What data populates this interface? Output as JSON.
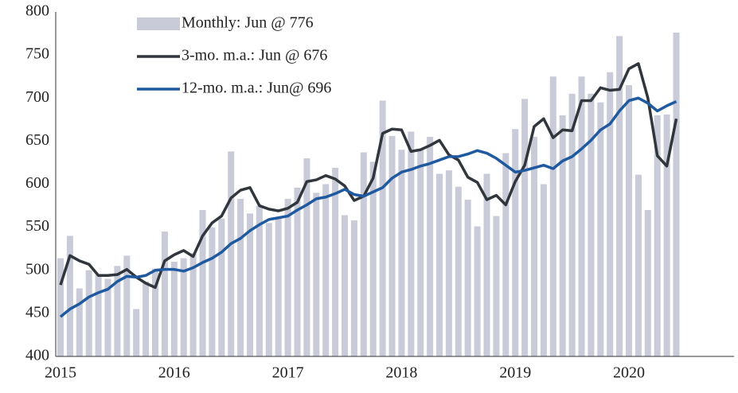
{
  "chart_data": {
    "type": "bar_line",
    "categories": [
      "2015",
      null,
      null,
      null,
      null,
      null,
      null,
      null,
      null,
      null,
      null,
      null,
      "2016",
      null,
      null,
      null,
      null,
      null,
      null,
      null,
      null,
      null,
      null,
      null,
      "2017",
      null,
      null,
      null,
      null,
      null,
      null,
      null,
      null,
      null,
      null,
      null,
      "2018",
      null,
      null,
      null,
      null,
      null,
      null,
      null,
      null,
      null,
      null,
      null,
      "2019",
      null,
      null,
      null,
      null,
      null,
      null,
      null,
      null,
      null,
      null,
      null,
      "2020",
      null,
      null,
      null,
      null,
      null
    ],
    "series": [
      {
        "name": "Monthly: Jun @ 776",
        "type": "bar",
        "color": "#c9cbd8",
        "values": [
          514,
          540,
          479,
          500,
          495,
          490,
          505,
          517,
          455,
          487,
          502,
          545,
          510,
          514,
          520,
          570,
          550,
          560,
          638,
          583,
          566,
          575,
          555,
          560,
          583,
          596,
          630,
          590,
          600,
          619,
          564,
          558,
          637,
          626,
          697,
          656,
          640,
          661,
          640,
          655,
          612,
          616,
          597,
          582,
          551,
          612,
          563,
          636,
          664,
          699,
          655,
          600,
          725,
          680,
          705,
          725,
          705,
          695,
          730,
          772,
          715,
          611,
          570,
          680,
          681,
          776
        ]
      },
      {
        "name": "3-mo. m.a.: Jun @ 676",
        "type": "line",
        "color": "#30363c",
        "values": [
          483,
          517,
          511,
          507,
          494,
          494,
          495,
          501,
          492,
          485,
          480,
          511,
          518,
          523,
          516,
          540,
          555,
          563,
          584,
          593,
          596,
          575,
          571,
          569,
          572,
          579,
          603,
          605,
          610,
          606,
          598,
          581,
          586,
          607,
          659,
          664,
          663,
          638,
          640,
          645,
          651,
          634,
          628,
          608,
          602,
          582,
          587,
          576,
          603,
          622,
          667,
          676,
          654,
          663,
          662,
          697,
          697,
          712,
          709,
          710,
          734,
          740,
          700,
          633,
          621,
          676
        ]
      },
      {
        "name": "12-mo. m.a.: Jun@ 696",
        "type": "line",
        "color": "#1f5aa0",
        "values": [
          446,
          455,
          461,
          469,
          474,
          478,
          487,
          493,
          492,
          494,
          500,
          501,
          501,
          499,
          503,
          509,
          514,
          521,
          531,
          537,
          546,
          553,
          559,
          561,
          563,
          570,
          576,
          583,
          585,
          589,
          594,
          588,
          586,
          591,
          596,
          607,
          614,
          617,
          621,
          624,
          628,
          632,
          632,
          635,
          639,
          636,
          630,
          622,
          614,
          616,
          619,
          622,
          618,
          627,
          632,
          641,
          651,
          663,
          670,
          685,
          697,
          700,
          694,
          685,
          691,
          696
        ]
      }
    ],
    "ylim": [
      400,
      800
    ],
    "yticks": [
      400,
      450,
      500,
      550,
      600,
      650,
      700,
      750,
      800
    ],
    "grid": false
  }
}
